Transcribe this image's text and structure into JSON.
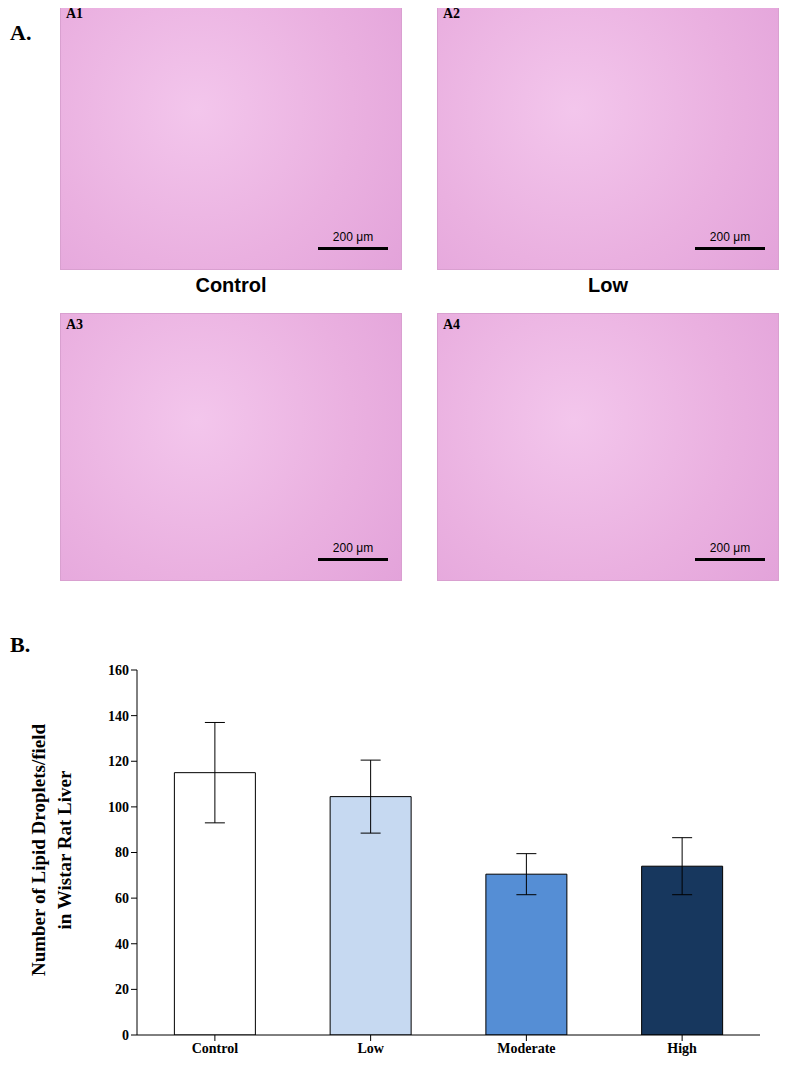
{
  "panel_a": {
    "label": "A.",
    "panels": [
      {
        "id": "A1",
        "caption": "Control",
        "scale_bar": "200 μm"
      },
      {
        "id": "A2",
        "caption": "Low",
        "scale_bar": "200 μm"
      },
      {
        "id": "A3",
        "caption": null,
        "scale_bar": "200 μm"
      },
      {
        "id": "A4",
        "caption": null,
        "scale_bar": "200 μm"
      }
    ]
  },
  "panel_b_label": "B.",
  "chart_data": {
    "type": "bar",
    "y_label": [
      "Number of Lipid Droplets/field",
      "in Wistar Rat Liver"
    ],
    "categories": [
      "Control",
      "Low",
      "Moderate",
      "High"
    ],
    "values": [
      115,
      104.5,
      70.5,
      74
    ],
    "errors": [
      22,
      16,
      9,
      12.5
    ],
    "colors": [
      "#ffffff",
      "#c6d9f1",
      "#558ed5",
      "#17375e"
    ],
    "ylim": [
      0,
      160
    ],
    "yticks": [
      0,
      20,
      40,
      60,
      80,
      100,
      120,
      140,
      160
    ],
    "grid": false
  }
}
